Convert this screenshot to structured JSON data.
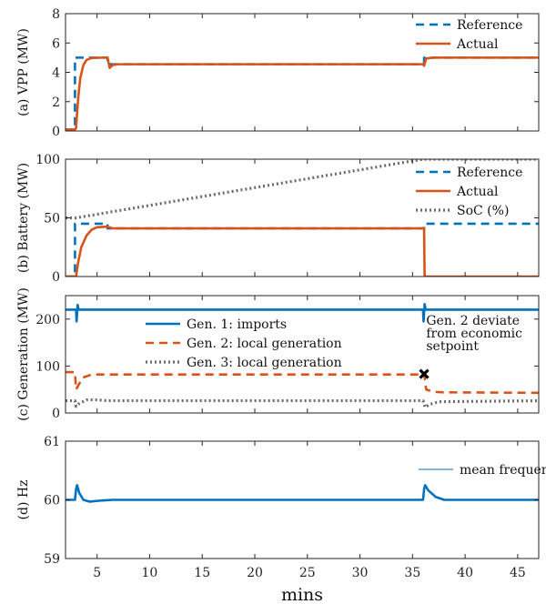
{
  "chart_data": [
    {
      "type": "line",
      "ylabel": "(a) VPP (MW)",
      "xlim": [
        2,
        47
      ],
      "ylim": [
        0,
        8
      ],
      "yticks": [
        0,
        2,
        4,
        6,
        8
      ],
      "grid": false,
      "legend_position": "top-right",
      "series": [
        {
          "name": "Reference",
          "color": "#0072BD",
          "style": "dashed",
          "points": [
            [
              2,
              0.1
            ],
            [
              2.9,
              0.1
            ],
            [
              2.9,
              5.0
            ],
            [
              6.0,
              5.0
            ],
            [
              6.0,
              4.55
            ],
            [
              36.1,
              4.55
            ],
            [
              36.1,
              5.0
            ],
            [
              47,
              5.0
            ]
          ]
        },
        {
          "name": "Actual",
          "color": "#D95319",
          "style": "solid",
          "points": [
            [
              2,
              0.1
            ],
            [
              2.9,
              0.1
            ],
            [
              3.0,
              0.2
            ],
            [
              3.2,
              2.2
            ],
            [
              3.4,
              3.6
            ],
            [
              3.7,
              4.5
            ],
            [
              4.0,
              4.85
            ],
            [
              4.5,
              4.98
            ],
            [
              5.5,
              5.0
            ],
            [
              6.0,
              5.0
            ],
            [
              6.2,
              4.3
            ],
            [
              6.5,
              4.5
            ],
            [
              7.0,
              4.55
            ],
            [
              36.0,
              4.55
            ],
            [
              36.1,
              4.45
            ],
            [
              36.3,
              4.95
            ],
            [
              37.0,
              5.0
            ],
            [
              47,
              5.0
            ]
          ]
        }
      ]
    },
    {
      "type": "line",
      "ylabel": "(b) Battery (MW)",
      "xlim": [
        2,
        47
      ],
      "ylim": [
        0,
        100
      ],
      "yticks": [
        0,
        50,
        100
      ],
      "grid": false,
      "legend_position": "top-right",
      "series": [
        {
          "name": "Reference",
          "color": "#0072BD",
          "style": "dashed",
          "points": [
            [
              2,
              0
            ],
            [
              2.9,
              0
            ],
            [
              2.9,
              45
            ],
            [
              6.0,
              45
            ],
            [
              6.0,
              41
            ],
            [
              36.1,
              41
            ],
            [
              36.1,
              45
            ],
            [
              47,
              45
            ]
          ]
        },
        {
          "name": "Actual",
          "color": "#D95319",
          "style": "solid",
          "points": [
            [
              2,
              0
            ],
            [
              3.0,
              0
            ],
            [
              3.2,
              12
            ],
            [
              3.5,
              25
            ],
            [
              4.0,
              35
            ],
            [
              4.5,
              40
            ],
            [
              5.0,
              42
            ],
            [
              6.0,
              42.5
            ],
            [
              6.5,
              41
            ],
            [
              7.0,
              41
            ],
            [
              36.1,
              41
            ],
            [
              36.15,
              0
            ],
            [
              47,
              0
            ]
          ]
        },
        {
          "name": "SoC (%)",
          "color": "#6b6b6b",
          "style": "dotted",
          "points": [
            [
              2,
              50
            ],
            [
              3,
              50
            ],
            [
              36,
              100
            ],
            [
              47,
              100
            ]
          ]
        }
      ]
    },
    {
      "type": "line",
      "ylabel": "(c) Generation (MW)",
      "xlim": [
        2,
        47
      ],
      "ylim": [
        0,
        250
      ],
      "yticks": [
        0,
        100,
        200
      ],
      "grid": false,
      "legend_position": "center",
      "series": [
        {
          "name": "Gen. 1:  imports",
          "color": "#0072BD",
          "style": "solid",
          "points": [
            [
              2,
              220
            ],
            [
              3.0,
              220
            ],
            [
              3.05,
              195
            ],
            [
              3.15,
              230
            ],
            [
              3.25,
              220
            ],
            [
              36.0,
              220
            ],
            [
              36.05,
              195
            ],
            [
              36.15,
              232
            ],
            [
              36.25,
              220
            ],
            [
              47,
              220
            ]
          ]
        },
        {
          "name": "Gen. 2:  local generation",
          "color": "#D95319",
          "style": "dashed",
          "points": [
            [
              2,
              87
            ],
            [
              2.9,
              87
            ],
            [
              3.0,
              50
            ],
            [
              3.3,
              62
            ],
            [
              3.6,
              75
            ],
            [
              4.5,
              82
            ],
            [
              36.0,
              82
            ],
            [
              36.1,
              85
            ],
            [
              36.3,
              50
            ],
            [
              37.0,
              45
            ],
            [
              38,
              44
            ],
            [
              47,
              43
            ]
          ]
        },
        {
          "name": "Gen. 3:  local generation",
          "color": "#6b6b6b",
          "style": "dotted",
          "points": [
            [
              2,
              26
            ],
            [
              2.9,
              26
            ],
            [
              3.0,
              14
            ],
            [
              3.3,
              20
            ],
            [
              4.0,
              28
            ],
            [
              5.0,
              28
            ],
            [
              6.0,
              26
            ],
            [
              36.0,
              26
            ],
            [
              36.2,
              12
            ],
            [
              36.6,
              18
            ],
            [
              37.5,
              24
            ],
            [
              47,
              26
            ]
          ]
        }
      ],
      "annotations": [
        {
          "type": "marker",
          "symbol": "x",
          "x": 36.1,
          "y": 83
        },
        {
          "type": "text",
          "lines": [
            "Gen. 2 deviate",
            "from economic",
            "setpoint"
          ],
          "x": 36.3,
          "y": 188
        }
      ]
    },
    {
      "type": "line",
      "ylabel": "(d) Hz",
      "xlabel": "mins",
      "xlim": [
        2,
        47
      ],
      "ylim": [
        59,
        61
      ],
      "yticks": [
        59,
        60,
        61
      ],
      "xticks": [
        5,
        10,
        15,
        20,
        25,
        30,
        35,
        40,
        45
      ],
      "grid": false,
      "legend_position": "top-right",
      "series": [
        {
          "name": "mean frequency",
          "color": "#0072BD",
          "style": "solid",
          "points": [
            [
              2,
              60.0
            ],
            [
              2.9,
              60.0
            ],
            [
              3.0,
              60.18
            ],
            [
              3.1,
              60.25
            ],
            [
              3.3,
              60.12
            ],
            [
              3.7,
              60.0
            ],
            [
              4.3,
              59.97
            ],
            [
              5.5,
              59.99
            ],
            [
              6.5,
              60.0
            ],
            [
              36.0,
              60.0
            ],
            [
              36.1,
              60.18
            ],
            [
              36.2,
              60.25
            ],
            [
              36.5,
              60.16
            ],
            [
              37.2,
              60.05
            ],
            [
              38,
              60.0
            ],
            [
              47,
              60.0
            ]
          ]
        }
      ]
    }
  ]
}
